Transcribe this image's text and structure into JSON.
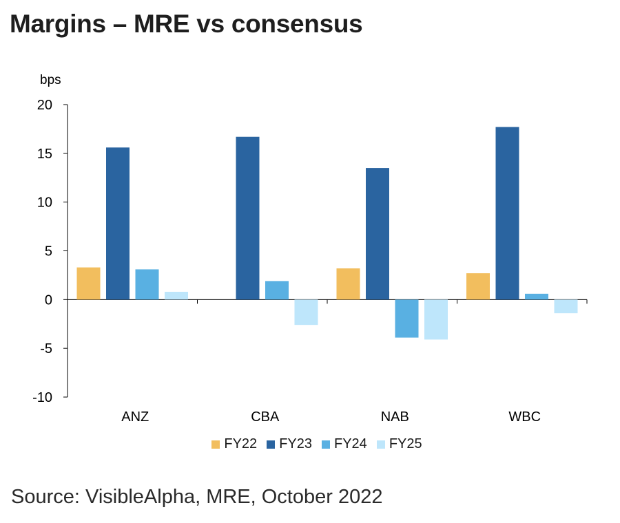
{
  "title": "Margins – MRE vs consensus",
  "source": "Source: VisibleAlpha, MRE, October 2022",
  "colors": {
    "FY22": "#F2BE5E",
    "FY23": "#2A64A0",
    "FY24": "#59B0E2",
    "FY25": "#BEE6FB",
    "axis": "#000000"
  },
  "chart_data": {
    "type": "bar",
    "title": "Margins – MRE vs consensus",
    "ylabel": "bps",
    "xlabel": "",
    "categories": [
      "ANZ",
      "CBA",
      "NAB",
      "WBC"
    ],
    "ylim": [
      -10,
      20
    ],
    "yticks": [
      20,
      15,
      10,
      5,
      0,
      -5,
      -10
    ],
    "grid": false,
    "legend": "bottom",
    "series": [
      {
        "name": "FY22",
        "values": [
          3.3,
          null,
          3.2,
          2.7
        ]
      },
      {
        "name": "FY23",
        "values": [
          15.6,
          16.7,
          13.5,
          17.7
        ]
      },
      {
        "name": "FY24",
        "values": [
          3.1,
          1.9,
          -3.9,
          0.6
        ]
      },
      {
        "name": "FY25",
        "values": [
          0.8,
          -2.6,
          -4.1,
          -1.4
        ]
      }
    ]
  }
}
